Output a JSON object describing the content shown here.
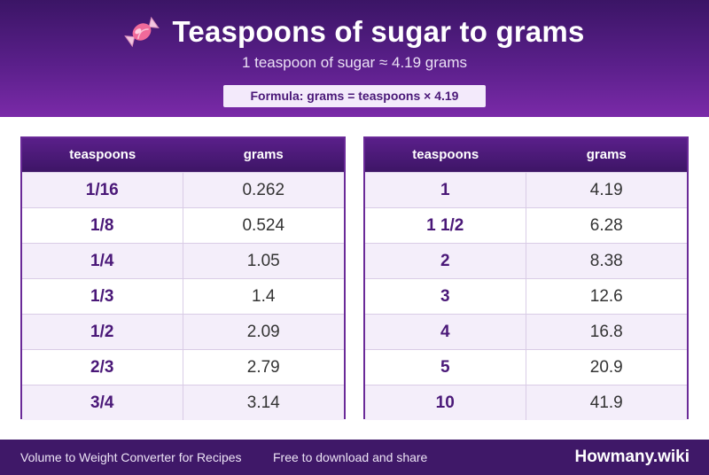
{
  "header": {
    "icon": "candy-icon",
    "title": "Teaspoons of sugar to grams",
    "subtitle": "1 teaspoon of sugar ≈ 4.19 grams",
    "formula": "Formula: grams = teaspoons × 4.19"
  },
  "tables": {
    "left": {
      "columns": [
        "teaspoons",
        "grams"
      ],
      "rows": [
        [
          "1/16",
          "0.262"
        ],
        [
          "1/8",
          "0.524"
        ],
        [
          "1/4",
          "1.05"
        ],
        [
          "1/3",
          "1.4"
        ],
        [
          "1/2",
          "2.09"
        ],
        [
          "2/3",
          "2.79"
        ],
        [
          "3/4",
          "3.14"
        ]
      ]
    },
    "right": {
      "columns": [
        "teaspoons",
        "grams"
      ],
      "rows": [
        [
          "1",
          "4.19"
        ],
        [
          "1 1/2",
          "6.28"
        ],
        [
          "2",
          "8.38"
        ],
        [
          "3",
          "12.6"
        ],
        [
          "4",
          "16.8"
        ],
        [
          "5",
          "20.9"
        ],
        [
          "10",
          "41.9"
        ]
      ]
    }
  },
  "footer": {
    "left_text": "Volume to Weight Converter for Recipes",
    "mid_text": "Free to download and share",
    "brand": "Howmany.wiki"
  },
  "colors": {
    "primary": "#5a1f8a",
    "accent": "#4a1878",
    "footer": "#3f1868"
  }
}
